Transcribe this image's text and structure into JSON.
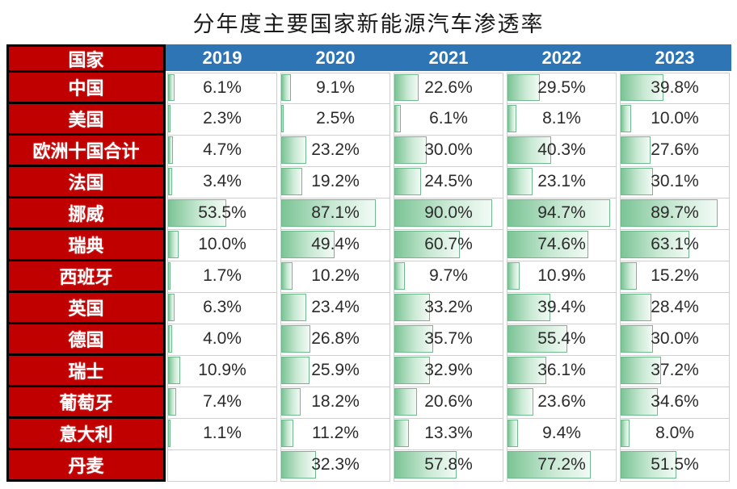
{
  "title": "分年度主要国家新能源汽车渗透率",
  "colors": {
    "row_header_bg": "#C00000",
    "row_header_text": "#FFFFFF",
    "year_header_bg": "#2E75B6",
    "year_header_text": "#FFFFFF",
    "bar_fill_start": "#7CC496",
    "bar_fill_end": "#F2FAF5",
    "bar_border": "#6FBA8D",
    "grid_border": "#CFCFCF",
    "value_text": "#2B2B2B",
    "black_border": "#000000"
  },
  "chart_data": {
    "type": "table",
    "title": "分年度主要国家新能源汽车渗透率",
    "columns": [
      "国家",
      "2019",
      "2020",
      "2021",
      "2022",
      "2023"
    ],
    "value_suffix": "%",
    "bar_scale": [
      0,
      100
    ],
    "bar_style": "gradient-green-data-bar",
    "rows": [
      {
        "country": "中国",
        "values": [
          6.1,
          9.1,
          22.6,
          29.5,
          39.8
        ]
      },
      {
        "country": "美国",
        "values": [
          2.3,
          2.5,
          6.1,
          8.1,
          10.0
        ]
      },
      {
        "country": "欧洲十国合计",
        "values": [
          4.7,
          23.2,
          30.0,
          40.3,
          27.6
        ]
      },
      {
        "country": "法国",
        "values": [
          3.4,
          19.2,
          24.5,
          23.1,
          30.1
        ]
      },
      {
        "country": "挪威",
        "values": [
          53.5,
          87.1,
          90.0,
          94.7,
          89.7
        ]
      },
      {
        "country": "瑞典",
        "values": [
          10.0,
          49.4,
          60.7,
          74.6,
          63.1
        ]
      },
      {
        "country": "西班牙",
        "values": [
          1.7,
          10.2,
          9.7,
          10.9,
          15.2
        ]
      },
      {
        "country": "英国",
        "values": [
          6.3,
          23.4,
          33.2,
          39.4,
          28.4
        ]
      },
      {
        "country": "德国",
        "values": [
          4.0,
          26.8,
          35.7,
          55.4,
          30.0
        ]
      },
      {
        "country": "瑞士",
        "values": [
          10.9,
          25.9,
          32.9,
          36.1,
          37.2
        ]
      },
      {
        "country": "葡萄牙",
        "values": [
          7.4,
          18.2,
          20.6,
          23.6,
          34.6
        ]
      },
      {
        "country": "意大利",
        "values": [
          1.1,
          11.2,
          13.3,
          9.4,
          8.0
        ]
      },
      {
        "country": "丹麦",
        "values": [
          null,
          32.3,
          57.8,
          77.2,
          51.5
        ]
      }
    ]
  }
}
